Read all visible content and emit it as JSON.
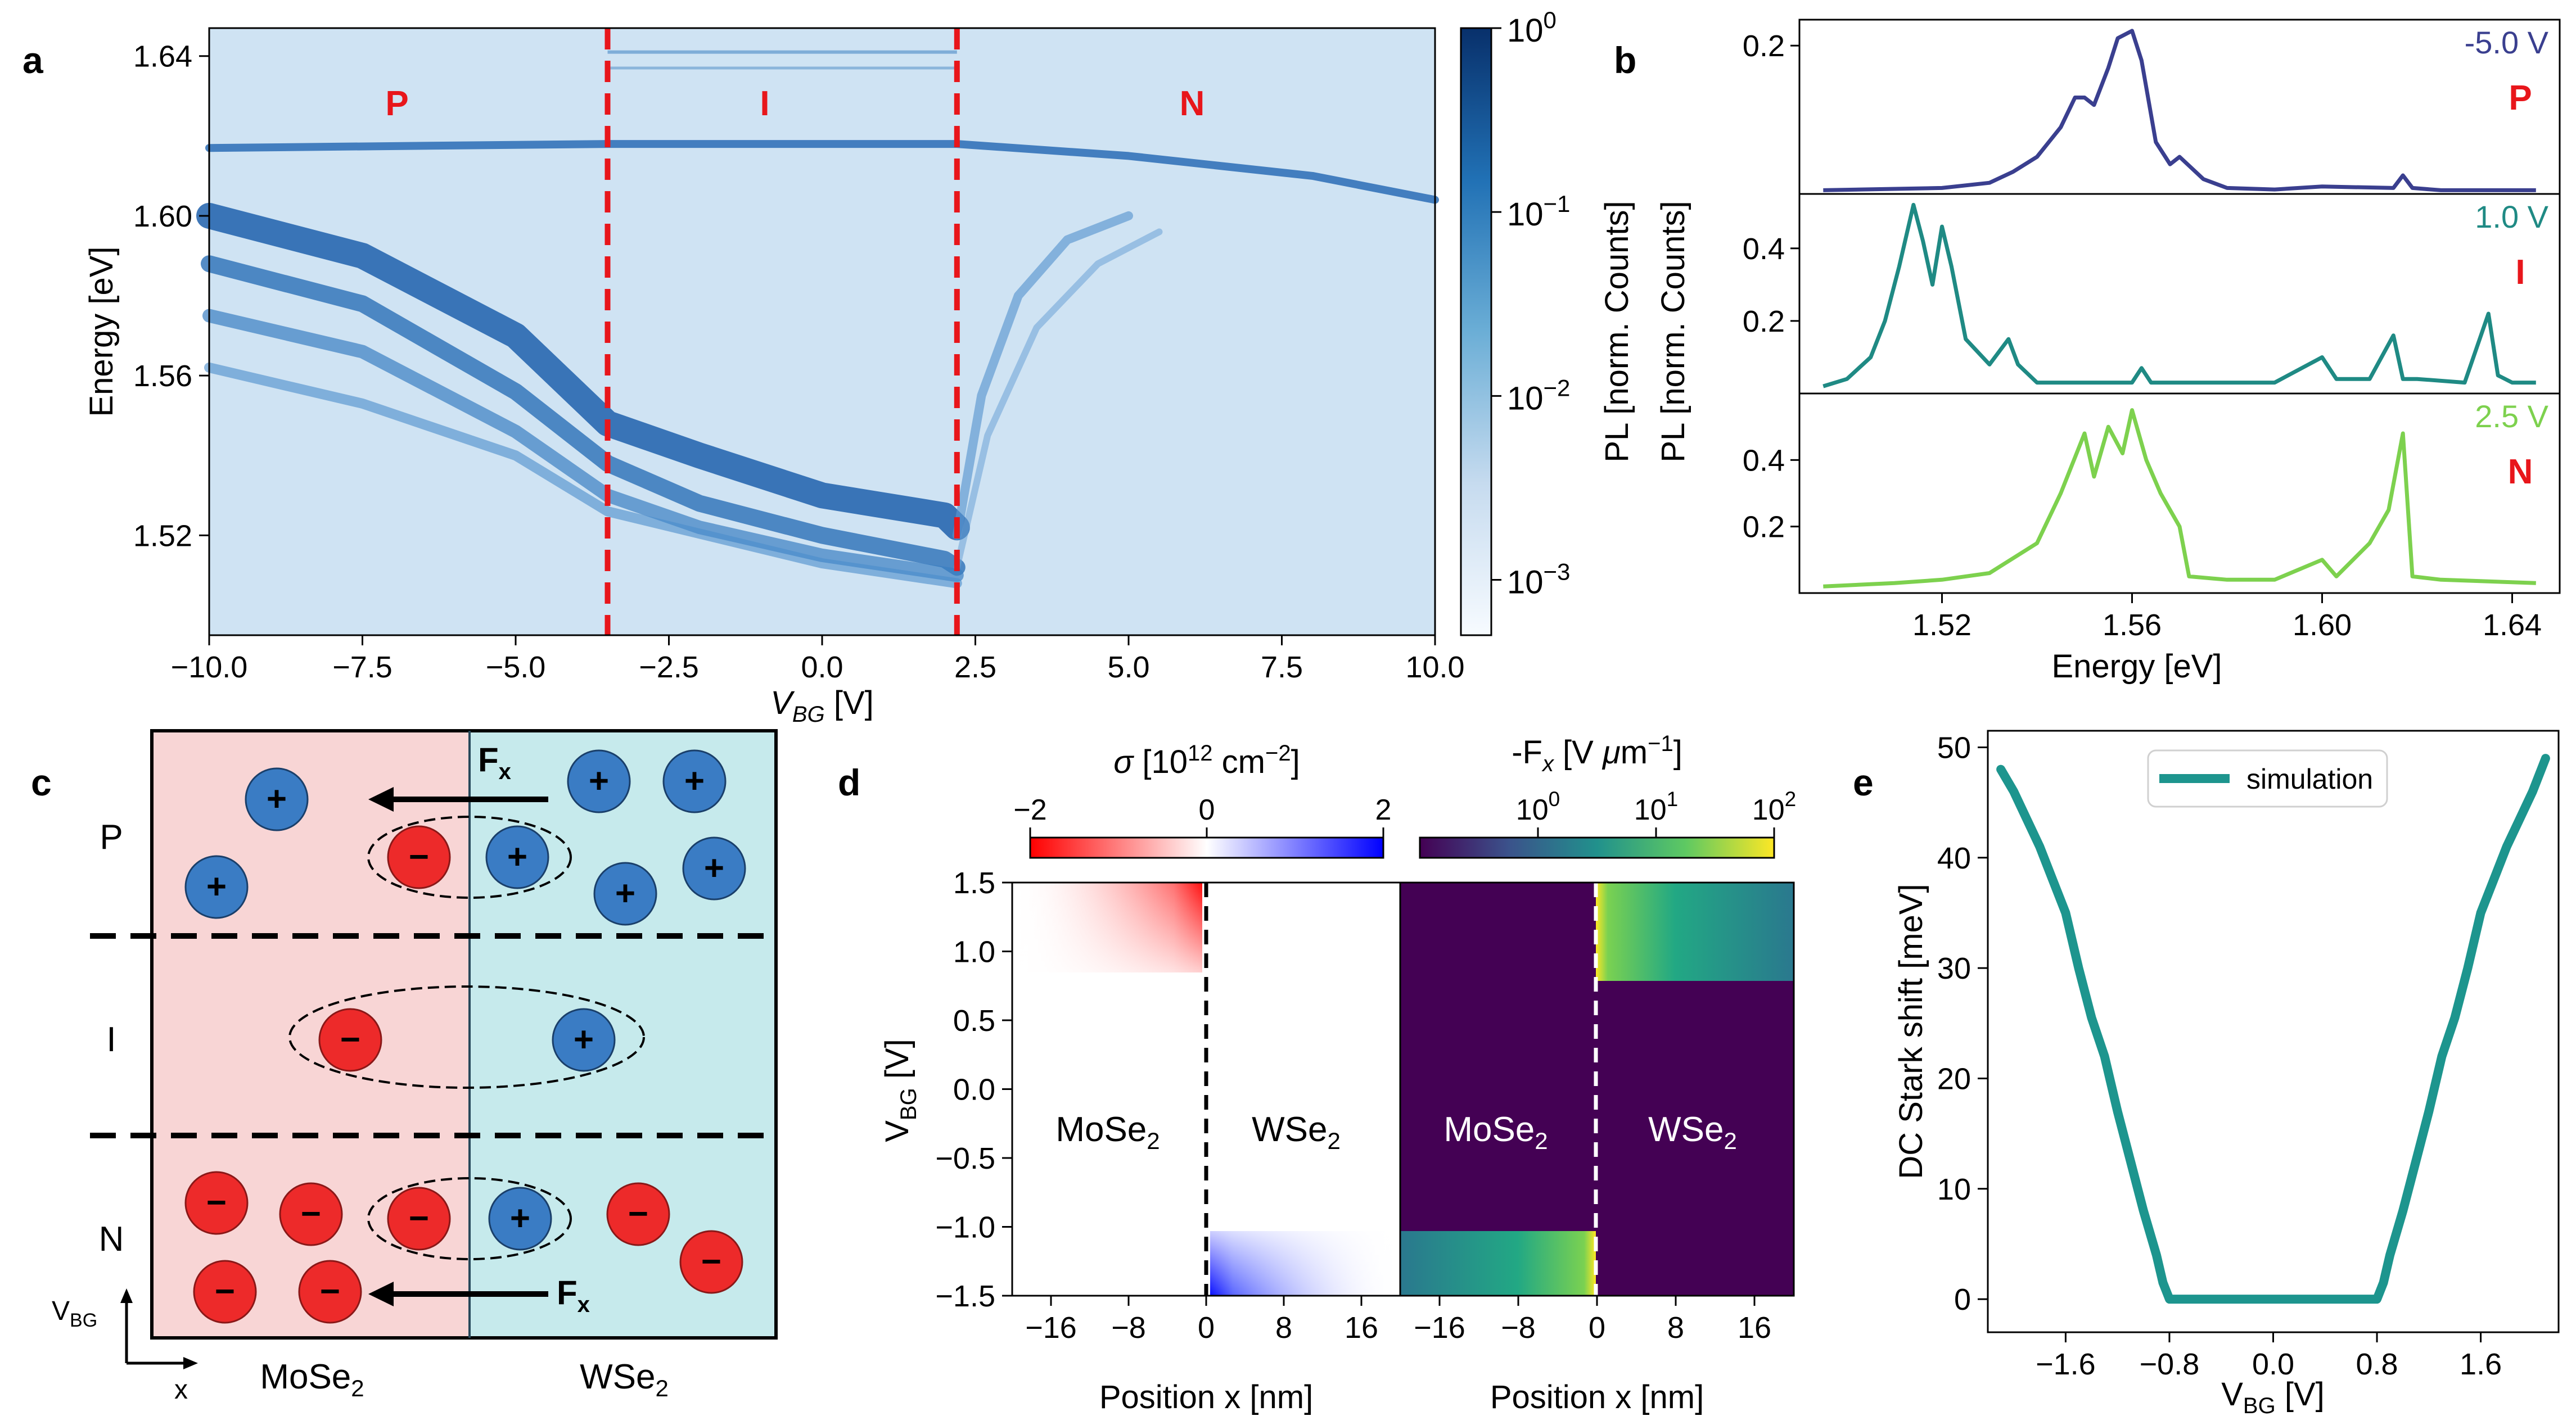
{
  "panels": {
    "a": "a",
    "b": "b",
    "c": "c",
    "d": "d",
    "e": "e"
  },
  "colors": {
    "blue_dark": "#0b3d8c",
    "blue_light": "#eaf2fa",
    "red": "#e8161b",
    "mose2_bg": "#f8d5d5",
    "wse2_bg": "#c6eaec",
    "hole": "#3a7cc4",
    "electron": "#ed2a2a",
    "spec_p": "#3a3f8f",
    "spec_i": "#1f8a84",
    "spec_n": "#7dd14e",
    "teal": "#1d958e"
  },
  "panel_a": {
    "xlabel_var": "V",
    "xlabel_sub": "BG",
    "xlabel_unit": " [V]",
    "ylabel": "Energy [eV]",
    "cbar_label": "PL [norm. Counts]",
    "regions": [
      "P",
      "I",
      "N"
    ],
    "chart_data": {
      "type": "heatmap",
      "title": "",
      "x_range": [
        -10,
        10
      ],
      "y_range": [
        1.495,
        1.647
      ],
      "xticks": [
        "−10.0",
        "−7.5",
        "−5.0",
        "−2.5",
        "0.0",
        "2.5",
        "5.0",
        "7.5",
        "10.0"
      ],
      "xtick_values": [
        -10,
        -7.5,
        -5,
        -2.5,
        0,
        2.5,
        5,
        7.5,
        10
      ],
      "yticks": [
        "1.64",
        "1.60",
        "1.56",
        "1.52"
      ],
      "ytick_values": [
        1.64,
        1.6,
        1.56,
        1.52
      ],
      "region_boundaries_V": [
        -3.5,
        2.2
      ],
      "colorbar": {
        "scale": "log",
        "min": 0.0005,
        "max": 1
      },
      "colorbar_ticks": [
        {
          "base": "10",
          "exp": "0",
          "value": 1
        },
        {
          "base": "10",
          "exp": "−1",
          "value": 0.1
        },
        {
          "base": "10",
          "exp": "−2",
          "value": 0.01
        },
        {
          "base": "10",
          "exp": "−3",
          "value": 0.001
        }
      ]
    }
  },
  "panel_b": {
    "xlabel": "Energy [eV]",
    "ylabel": "PL [norm. Counts]",
    "chart_data": {
      "type": "line",
      "x_range": [
        1.49,
        1.65
      ],
      "xticks": [
        "1.52",
        "1.56",
        "1.60",
        "1.64"
      ],
      "xtick_values": [
        1.52,
        1.56,
        1.6,
        1.64
      ],
      "series": [
        {
          "name": "-5.0 V",
          "region": "P",
          "ylim": [
            0,
            0.235
          ],
          "yticks": [
            "0.2"
          ],
          "ytick_values": [
            0.2
          ],
          "x": [
            1.495,
            1.52,
            1.53,
            1.535,
            1.54,
            1.545,
            1.548,
            1.55,
            1.552,
            1.555,
            1.557,
            1.56,
            1.562,
            1.565,
            1.568,
            1.57,
            1.575,
            1.58,
            1.59,
            1.6,
            1.615,
            1.617,
            1.619,
            1.625,
            1.645
          ],
          "y": [
            0.005,
            0.008,
            0.015,
            0.03,
            0.05,
            0.09,
            0.13,
            0.13,
            0.12,
            0.17,
            0.21,
            0.22,
            0.18,
            0.07,
            0.04,
            0.05,
            0.02,
            0.008,
            0.006,
            0.01,
            0.008,
            0.025,
            0.008,
            0.005,
            0.005
          ]
        },
        {
          "name": "1.0 V",
          "region": "I",
          "ylim": [
            0,
            0.55
          ],
          "yticks": [
            "0.4",
            "0.2"
          ],
          "ytick_values": [
            0.4,
            0.2
          ],
          "x": [
            1.495,
            1.5,
            1.505,
            1.508,
            1.511,
            1.514,
            1.516,
            1.518,
            1.52,
            1.522,
            1.525,
            1.53,
            1.534,
            1.536,
            1.54,
            1.55,
            1.56,
            1.562,
            1.564,
            1.57,
            1.58,
            1.59,
            1.6,
            1.603,
            1.61,
            1.615,
            1.617,
            1.62,
            1.63,
            1.635,
            1.637,
            1.64,
            1.645
          ],
          "y": [
            0.02,
            0.04,
            0.1,
            0.2,
            0.35,
            0.52,
            0.42,
            0.3,
            0.46,
            0.35,
            0.15,
            0.08,
            0.15,
            0.08,
            0.03,
            0.03,
            0.03,
            0.07,
            0.03,
            0.03,
            0.03,
            0.03,
            0.1,
            0.04,
            0.04,
            0.16,
            0.04,
            0.04,
            0.03,
            0.22,
            0.05,
            0.03,
            0.03
          ]
        },
        {
          "name": "2.5 V",
          "region": "N",
          "ylim": [
            0,
            0.6
          ],
          "yticks": [
            "0.4",
            "0.2"
          ],
          "ytick_values": [
            0.4,
            0.2
          ],
          "x": [
            1.495,
            1.51,
            1.52,
            1.53,
            1.54,
            1.545,
            1.55,
            1.552,
            1.555,
            1.558,
            1.56,
            1.563,
            1.566,
            1.57,
            1.572,
            1.58,
            1.59,
            1.6,
            1.603,
            1.61,
            1.614,
            1.617,
            1.619,
            1.625,
            1.645
          ],
          "y": [
            0.02,
            0.03,
            0.04,
            0.06,
            0.15,
            0.3,
            0.48,
            0.35,
            0.5,
            0.42,
            0.55,
            0.4,
            0.3,
            0.2,
            0.05,
            0.04,
            0.04,
            0.1,
            0.05,
            0.15,
            0.25,
            0.48,
            0.05,
            0.04,
            0.03
          ]
        }
      ]
    }
  },
  "panel_c": {
    "rows": [
      "P",
      "I",
      "N"
    ],
    "force_label": "F",
    "force_sub": "x",
    "materials": [
      {
        "name": "MoSe",
        "sub": "2"
      },
      {
        "name": "WSe",
        "sub": "2"
      }
    ],
    "axis_v": "V",
    "axis_v_sub": "BG",
    "axis_x": "x",
    "hole_symbol": "+",
    "electron_symbol": "−"
  },
  "panel_d": {
    "sigma_label_sym": "σ",
    "sigma_label_rest": " [10",
    "sigma_label_exp": "12",
    "sigma_label_unit": " cm",
    "sigma_label_exp2": "−2",
    "sigma_label_close": "]",
    "field_label": "-F",
    "field_label_sub": "x",
    "field_label_unit": "  [V ",
    "field_label_mu": "μ",
    "field_label_m": "m",
    "field_label_exp": "−1",
    "field_label_close": "]",
    "ylabel_var": "V",
    "ylabel_sub": "BG",
    "ylabel_unit": " [V]",
    "xlabel": "Position x [nm]",
    "materials": [
      {
        "name": "MoSe",
        "sub": "2"
      },
      {
        "name": "WSe",
        "sub": "2"
      }
    ],
    "chart_data": {
      "type": "heatmap",
      "x_range": [
        -20,
        20
      ],
      "y_range": [
        -1.5,
        1.5
      ],
      "xticks": [
        "−16",
        "−8",
        "0",
        "8",
        "16"
      ],
      "xtick_values": [
        -16,
        -8,
        0,
        8,
        16
      ],
      "yticks": [
        "1.5",
        "1.0",
        "0.5",
        "0.0",
        "−0.5",
        "−1.0",
        "−1.5"
      ],
      "ytick_values": [
        1.5,
        1.0,
        0.5,
        0.0,
        -0.5,
        -1.0,
        -1.5
      ],
      "sigma_colorbar": {
        "scale": "linear",
        "min": -2,
        "max": 2,
        "ticks": [
          "−2",
          "0",
          "2"
        ],
        "tick_values": [
          -2,
          0,
          2
        ]
      },
      "field_colorbar": {
        "scale": "log",
        "min": 0.1,
        "max": 100,
        "ticks": [
          {
            "base": "10",
            "exp": "0",
            "value": 1
          },
          {
            "base": "10",
            "exp": "1",
            "value": 10
          },
          {
            "base": "10",
            "exp": "2",
            "value": 100
          }
        ]
      },
      "threshold_V": 0.85
    }
  },
  "panel_e": {
    "ylabel": "DC Stark shift [meV]",
    "xlabel_var": "V",
    "xlabel_sub": "BG",
    "xlabel_unit": " [V]",
    "legend": "simulation",
    "chart_data": {
      "type": "line",
      "title": "",
      "x_range": [
        -2.2,
        2.2
      ],
      "ylim": [
        -3,
        51.5
      ],
      "xticks": [
        "−1.6",
        "−0.8",
        "0.0",
        "0.8",
        "1.6"
      ],
      "xtick_values": [
        -1.6,
        -0.8,
        0.0,
        0.8,
        1.6
      ],
      "yticks": [
        "0",
        "10",
        "20",
        "30",
        "40",
        "50"
      ],
      "ytick_values": [
        0,
        10,
        20,
        30,
        40,
        50
      ],
      "series": [
        {
          "name": "simulation",
          "x": [
            -2.1,
            -2.0,
            -1.9,
            -1.8,
            -1.7,
            -1.6,
            -1.5,
            -1.4,
            -1.3,
            -1.2,
            -1.1,
            -1.0,
            -0.9,
            -0.85,
            -0.8,
            0.0,
            0.8,
            0.85,
            0.9,
            1.0,
            1.1,
            1.2,
            1.3,
            1.4,
            1.5,
            1.6,
            1.7,
            1.8,
            1.9,
            2.0,
            2.1
          ],
          "y": [
            48,
            46,
            43.5,
            41,
            38,
            35,
            30,
            25.5,
            22,
            17,
            12.5,
            8,
            4,
            1.5,
            0,
            0,
            0,
            1.5,
            4,
            8,
            12.5,
            17,
            22,
            25.5,
            30,
            35,
            38,
            41,
            43.5,
            46,
            49
          ]
        }
      ]
    }
  }
}
